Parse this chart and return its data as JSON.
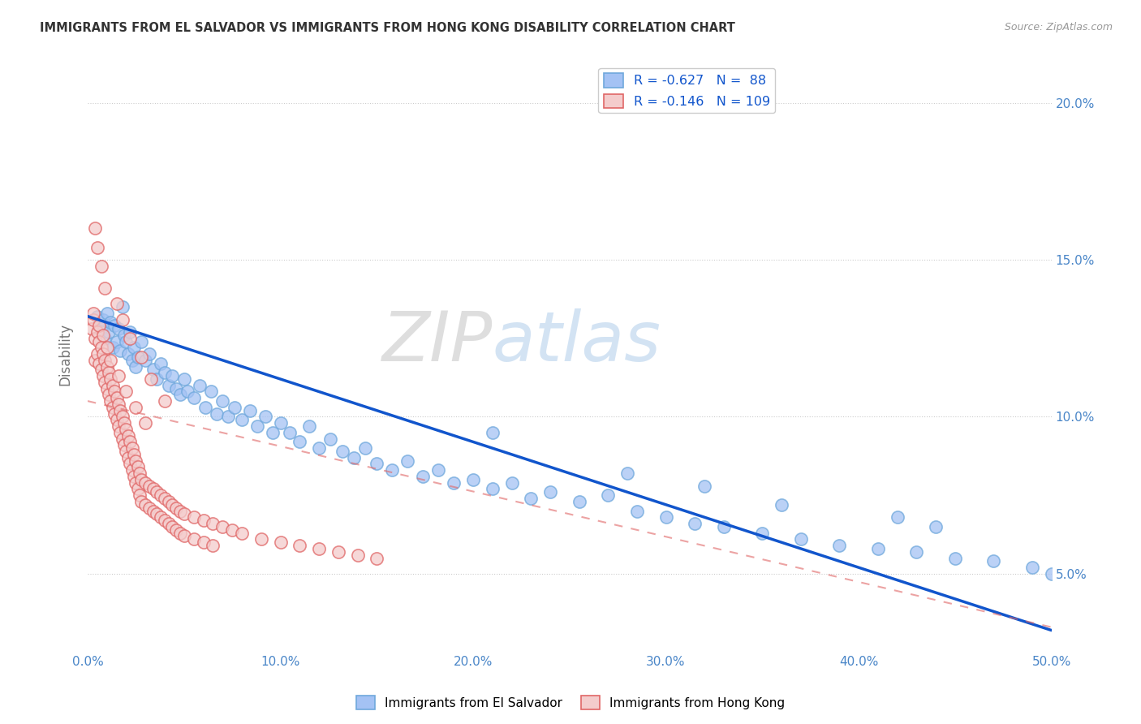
{
  "title": "IMMIGRANTS FROM EL SALVADOR VS IMMIGRANTS FROM HONG KONG DISABILITY CORRELATION CHART",
  "source": "Source: ZipAtlas.com",
  "ylabel": "Disability",
  "legend_label_blue": "Immigrants from El Salvador",
  "legend_label_pink": "Immigrants from Hong Kong",
  "legend_R_blue": "-0.627",
  "legend_N_blue": "88",
  "legend_R_pink": "-0.146",
  "legend_N_pink": "109",
  "watermark_zip": "ZIP",
  "watermark_atlas": "atlas",
  "blue_scatter_color": "#a4c2f4",
  "blue_scatter_edge": "#6fa8dc",
  "pink_scatter_color": "#f4cccc",
  "pink_scatter_edge": "#e06666",
  "blue_line_color": "#1155cc",
  "pink_line_color": "#e06666",
  "tick_color": "#4a86c8",
  "ylabel_color": "#777777",
  "title_color": "#333333",
  "source_color": "#999999",
  "grid_color": "#cccccc",
  "xlim": [
    0.0,
    0.5
  ],
  "ylim": [
    0.025,
    0.215
  ],
  "blue_trend_x0": 0.0,
  "blue_trend_y0": 0.132,
  "blue_trend_x1": 0.5,
  "blue_trend_y1": 0.032,
  "pink_trend_x0": 0.0,
  "pink_trend_y0": 0.105,
  "pink_trend_x1": 0.5,
  "pink_trend_y1": 0.033,
  "blue_scatter_x": [
    0.005,
    0.007,
    0.008,
    0.009,
    0.01,
    0.011,
    0.012,
    0.013,
    0.014,
    0.015,
    0.016,
    0.017,
    0.018,
    0.019,
    0.02,
    0.021,
    0.022,
    0.023,
    0.024,
    0.025,
    0.026,
    0.028,
    0.03,
    0.032,
    0.034,
    0.036,
    0.038,
    0.04,
    0.042,
    0.044,
    0.046,
    0.048,
    0.05,
    0.052,
    0.055,
    0.058,
    0.061,
    0.064,
    0.067,
    0.07,
    0.073,
    0.076,
    0.08,
    0.084,
    0.088,
    0.092,
    0.096,
    0.1,
    0.105,
    0.11,
    0.115,
    0.12,
    0.126,
    0.132,
    0.138,
    0.144,
    0.15,
    0.158,
    0.166,
    0.174,
    0.182,
    0.19,
    0.2,
    0.21,
    0.22,
    0.23,
    0.24,
    0.255,
    0.27,
    0.285,
    0.3,
    0.315,
    0.33,
    0.35,
    0.37,
    0.39,
    0.41,
    0.43,
    0.45,
    0.47,
    0.49,
    0.5,
    0.21,
    0.28,
    0.32,
    0.36,
    0.44,
    0.42
  ],
  "blue_scatter_y": [
    0.132,
    0.128,
    0.131,
    0.125,
    0.133,
    0.127,
    0.13,
    0.122,
    0.129,
    0.124,
    0.128,
    0.121,
    0.135,
    0.126,
    0.124,
    0.12,
    0.127,
    0.118,
    0.122,
    0.116,
    0.119,
    0.124,
    0.118,
    0.12,
    0.115,
    0.112,
    0.117,
    0.114,
    0.11,
    0.113,
    0.109,
    0.107,
    0.112,
    0.108,
    0.106,
    0.11,
    0.103,
    0.108,
    0.101,
    0.105,
    0.1,
    0.103,
    0.099,
    0.102,
    0.097,
    0.1,
    0.095,
    0.098,
    0.095,
    0.092,
    0.097,
    0.09,
    0.093,
    0.089,
    0.087,
    0.09,
    0.085,
    0.083,
    0.086,
    0.081,
    0.083,
    0.079,
    0.08,
    0.077,
    0.079,
    0.074,
    0.076,
    0.073,
    0.075,
    0.07,
    0.068,
    0.066,
    0.065,
    0.063,
    0.061,
    0.059,
    0.058,
    0.057,
    0.055,
    0.054,
    0.052,
    0.05,
    0.095,
    0.082,
    0.078,
    0.072,
    0.065,
    0.068
  ],
  "pink_scatter_x": [
    0.002,
    0.003,
    0.004,
    0.004,
    0.005,
    0.005,
    0.006,
    0.006,
    0.007,
    0.007,
    0.008,
    0.008,
    0.009,
    0.009,
    0.01,
    0.01,
    0.011,
    0.011,
    0.012,
    0.012,
    0.013,
    0.013,
    0.014,
    0.014,
    0.015,
    0.015,
    0.016,
    0.016,
    0.017,
    0.017,
    0.018,
    0.018,
    0.019,
    0.019,
    0.02,
    0.02,
    0.021,
    0.021,
    0.022,
    0.022,
    0.023,
    0.023,
    0.024,
    0.024,
    0.025,
    0.025,
    0.026,
    0.026,
    0.027,
    0.027,
    0.028,
    0.028,
    0.03,
    0.03,
    0.032,
    0.032,
    0.034,
    0.034,
    0.036,
    0.036,
    0.038,
    0.038,
    0.04,
    0.04,
    0.042,
    0.042,
    0.044,
    0.044,
    0.046,
    0.046,
    0.048,
    0.048,
    0.05,
    0.05,
    0.055,
    0.055,
    0.06,
    0.06,
    0.065,
    0.065,
    0.07,
    0.075,
    0.08,
    0.09,
    0.1,
    0.11,
    0.12,
    0.13,
    0.14,
    0.15,
    0.003,
    0.006,
    0.008,
    0.01,
    0.012,
    0.016,
    0.02,
    0.025,
    0.03,
    0.004,
    0.005,
    0.007,
    0.009,
    0.015,
    0.018,
    0.022,
    0.028,
    0.033,
    0.04
  ],
  "pink_scatter_y": [
    0.128,
    0.131,
    0.125,
    0.118,
    0.127,
    0.12,
    0.124,
    0.117,
    0.122,
    0.115,
    0.12,
    0.113,
    0.118,
    0.111,
    0.116,
    0.109,
    0.114,
    0.107,
    0.112,
    0.105,
    0.11,
    0.103,
    0.108,
    0.101,
    0.106,
    0.099,
    0.104,
    0.097,
    0.102,
    0.095,
    0.1,
    0.093,
    0.098,
    0.091,
    0.096,
    0.089,
    0.094,
    0.087,
    0.092,
    0.085,
    0.09,
    0.083,
    0.088,
    0.081,
    0.086,
    0.079,
    0.084,
    0.077,
    0.082,
    0.075,
    0.08,
    0.073,
    0.079,
    0.072,
    0.078,
    0.071,
    0.077,
    0.07,
    0.076,
    0.069,
    0.075,
    0.068,
    0.074,
    0.067,
    0.073,
    0.066,
    0.072,
    0.065,
    0.071,
    0.064,
    0.07,
    0.063,
    0.069,
    0.062,
    0.068,
    0.061,
    0.067,
    0.06,
    0.066,
    0.059,
    0.065,
    0.064,
    0.063,
    0.061,
    0.06,
    0.059,
    0.058,
    0.057,
    0.056,
    0.055,
    0.133,
    0.129,
    0.126,
    0.122,
    0.118,
    0.113,
    0.108,
    0.103,
    0.098,
    0.16,
    0.154,
    0.148,
    0.141,
    0.136,
    0.131,
    0.125,
    0.119,
    0.112,
    0.105
  ]
}
